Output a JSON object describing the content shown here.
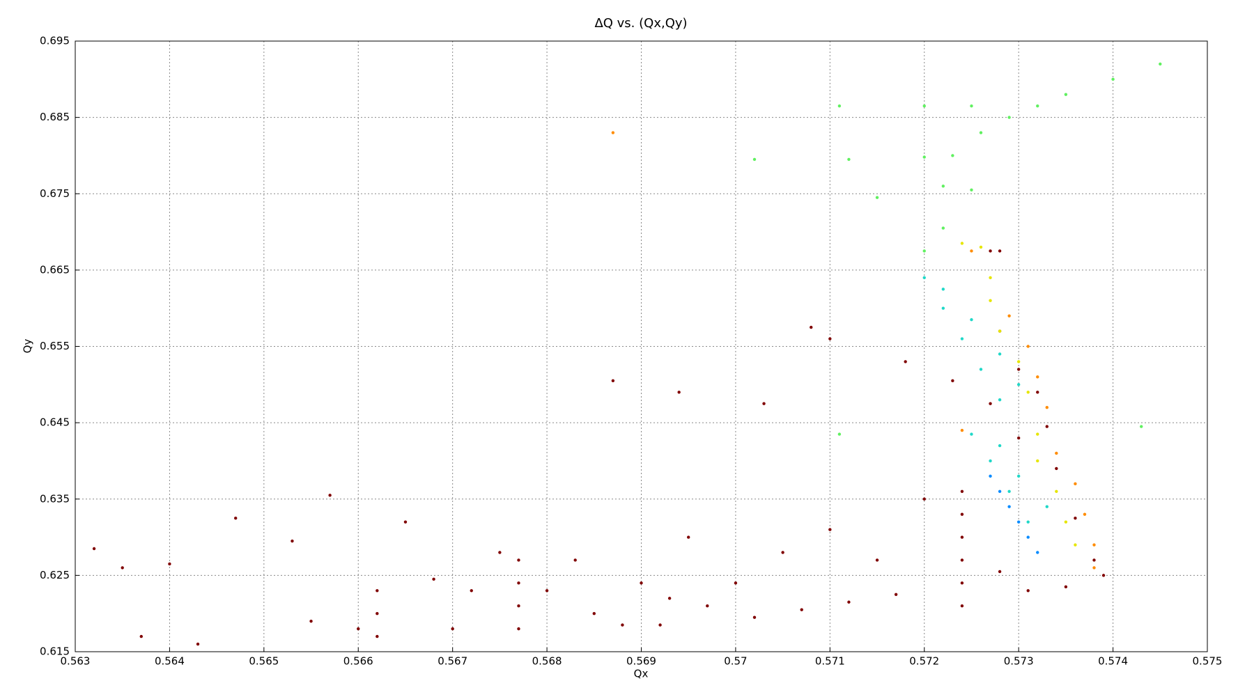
{
  "chart_data": {
    "type": "scatter",
    "title": "ΔQ vs. (Qx,Qy)",
    "xlabel": "Qx",
    "ylabel": "Qy",
    "xlim": [
      0.563,
      0.575
    ],
    "ylim": [
      0.615,
      0.695
    ],
    "xticks": [
      0.563,
      0.564,
      0.565,
      0.566,
      0.567,
      0.568,
      0.569,
      0.57,
      0.571,
      0.572,
      0.573,
      0.574,
      0.575
    ],
    "yticks": [
      0.615,
      0.625,
      0.635,
      0.645,
      0.655,
      0.665,
      0.675,
      0.685,
      0.695
    ],
    "grid": true,
    "series": [
      {
        "color": "#800000",
        "x": [
          0.5632,
          0.5635,
          0.5637,
          0.564,
          0.5643,
          0.5647,
          0.5653,
          0.5655,
          0.5657,
          0.566,
          0.5662,
          0.5662,
          0.5662,
          0.5665,
          0.5668,
          0.567,
          0.5672,
          0.5675,
          0.5677,
          0.5677,
          0.5677,
          0.5677,
          0.568,
          0.5683,
          0.5685,
          0.5688,
          0.569,
          0.5692,
          0.5693,
          0.5695,
          0.5697,
          0.57,
          0.5702,
          0.5705,
          0.5707,
          0.571,
          0.5712,
          0.5715,
          0.5717,
          0.572,
          0.5724,
          0.5724,
          0.5724,
          0.5724,
          0.5724,
          0.5724,
          0.5703,
          0.5694,
          0.5687,
          0.571,
          0.5718,
          0.5723,
          0.5727,
          0.573,
          0.5733,
          0.5732,
          0.573,
          0.5728,
          0.5734,
          0.5736,
          0.5738,
          0.5739,
          0.5735,
          0.5731,
          0.5728,
          0.5727,
          0.5728,
          0.5708
        ],
        "values": [
          0.6285,
          0.626,
          0.617,
          0.6265,
          0.616,
          0.6325,
          0.6295,
          0.619,
          0.6355,
          0.618,
          0.617,
          0.62,
          0.623,
          0.632,
          0.6245,
          0.618,
          0.623,
          0.628,
          0.618,
          0.621,
          0.624,
          0.627,
          0.623,
          0.627,
          0.62,
          0.6185,
          0.624,
          0.6185,
          0.622,
          0.63,
          0.621,
          0.624,
          0.6195,
          0.628,
          0.6205,
          0.631,
          0.6215,
          0.627,
          0.6225,
          0.635,
          0.621,
          0.624,
          0.627,
          0.63,
          0.633,
          0.636,
          0.6475,
          0.649,
          0.6505,
          0.656,
          0.653,
          0.6505,
          0.6475,
          0.643,
          0.6445,
          0.649,
          0.652,
          0.657,
          0.639,
          0.6325,
          0.627,
          0.625,
          0.6235,
          0.623,
          0.6255,
          0.6675,
          0.6675,
          0.6575
        ]
      },
      {
        "color": "#ff8c00",
        "x": [
          0.5729,
          0.5731,
          0.5732,
          0.5733,
          0.5734,
          0.5736,
          0.5737,
          0.5738,
          0.5738,
          0.5687,
          0.5725,
          0.5724
        ],
        "values": [
          0.659,
          0.655,
          0.651,
          0.647,
          0.641,
          0.637,
          0.633,
          0.629,
          0.626,
          0.683,
          0.6675,
          0.644
        ]
      },
      {
        "color": "#e6e600",
        "x": [
          0.5727,
          0.5728,
          0.573,
          0.5731,
          0.5724,
          0.5726,
          0.5732,
          0.5734,
          0.5735,
          0.5736,
          0.5732,
          0.5727
        ],
        "values": [
          0.661,
          0.657,
          0.653,
          0.649,
          0.6685,
          0.668,
          0.64,
          0.636,
          0.632,
          0.629,
          0.6435,
          0.664
        ]
      },
      {
        "color": "#60f060",
        "x": [
          0.5711,
          0.572,
          0.5725,
          0.5702,
          0.5712,
          0.572,
          0.5722,
          0.5723,
          0.5726,
          0.5729,
          0.5735,
          0.574,
          0.5745,
          0.572,
          0.5715,
          0.5725,
          0.5722,
          0.5732,
          0.5743,
          0.5711
        ],
        "values": [
          0.6865,
          0.6865,
          0.6865,
          0.6795,
          0.6795,
          0.6798,
          0.676,
          0.68,
          0.683,
          0.685,
          0.688,
          0.69,
          0.692,
          0.6675,
          0.6745,
          0.6755,
          0.6705,
          0.6865,
          0.6445,
          0.6435
        ]
      },
      {
        "color": "#20d8c8",
        "x": [
          0.572,
          0.5722,
          0.5724,
          0.5726,
          0.5728,
          0.5725,
          0.5727,
          0.5729,
          0.5731,
          0.5722,
          0.5725,
          0.5728,
          0.573,
          0.5728,
          0.573,
          0.5733
        ],
        "values": [
          0.664,
          0.66,
          0.656,
          0.652,
          0.648,
          0.6435,
          0.64,
          0.636,
          0.632,
          0.6625,
          0.6585,
          0.654,
          0.65,
          0.642,
          0.638,
          0.634
        ]
      },
      {
        "color": "#0a8cff",
        "x": [
          0.5727,
          0.5728,
          0.5729,
          0.573,
          0.5731,
          0.5732
        ],
        "values": [
          0.638,
          0.636,
          0.634,
          0.632,
          0.63,
          0.628
        ]
      }
    ]
  }
}
